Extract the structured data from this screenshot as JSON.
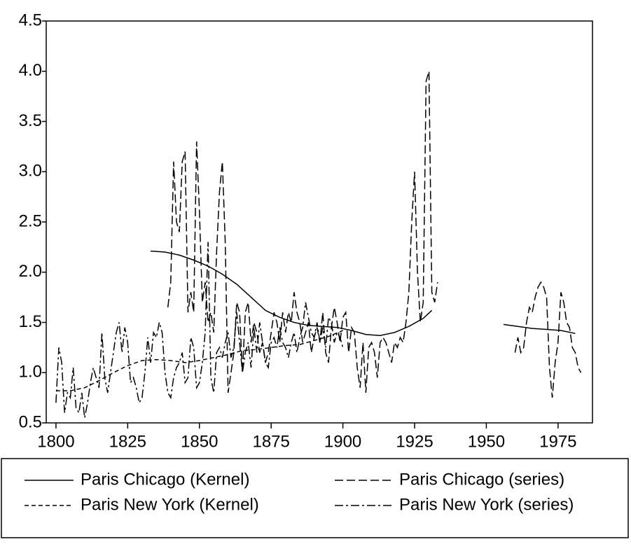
{
  "chart_data": {
    "type": "line",
    "xlim": [
      1796.6,
      1987
    ],
    "ylim": [
      0.5,
      4.5
    ],
    "xticks": [
      1800,
      1825,
      1850,
      1875,
      1900,
      1925,
      1950,
      1975
    ],
    "yticks": [
      0.5,
      {
        "value": 1,
        "label": "1.0"
      },
      1.5,
      {
        "value": 2,
        "label": "2.0"
      },
      2.5,
      {
        "value": 3,
        "label": "3.0"
      },
      3.5,
      {
        "value": 4,
        "label": "4.0"
      },
      4.5
    ],
    "grid": false,
    "legend": "bottom",
    "series": [
      {
        "name": "Paris Chicago (Kernel)",
        "color": "#000000",
        "dash": "solid",
        "x": [
          1833,
          1838,
          1843,
          1848,
          1853,
          1858,
          1863,
          1868,
          1873,
          1878,
          1883,
          1888,
          1893,
          1898,
          1903,
          1908,
          1913,
          1918,
          1923,
          1928,
          1931,
          1945,
          1956,
          1961,
          1966,
          1971,
          1976,
          1981
        ],
        "values": [
          2.21,
          2.2,
          2.17,
          2.12,
          2.06,
          1.98,
          1.88,
          1.75,
          1.62,
          1.55,
          1.5,
          1.47,
          1.46,
          1.45,
          1.42,
          1.38,
          1.37,
          1.4,
          1.46,
          1.54,
          1.62,
          null,
          1.48,
          1.46,
          1.44,
          1.43,
          1.42,
          1.39
        ]
      },
      {
        "name": "Paris Chicago (series)",
        "color": "#000000",
        "dash": "long-dash",
        "x": [
          1839,
          1840,
          1841,
          1842,
          1843,
          1844,
          1845,
          1846,
          1847,
          1848,
          1849,
          1850,
          1851,
          1852,
          1853,
          1854,
          1855,
          1856,
          1857,
          1858,
          1859,
          1860,
          1861,
          1862,
          1863,
          1864,
          1865,
          1866,
          1867,
          1868,
          1869,
          1870,
          1871,
          1872,
          1873,
          1874,
          1875,
          1876,
          1877,
          1878,
          1879,
          1880,
          1881,
          1882,
          1883,
          1884,
          1885,
          1886,
          1887,
          1888,
          1889,
          1890,
          1891,
          1892,
          1893,
          1894,
          1895,
          1896,
          1897,
          1898,
          1899,
          1900,
          1901,
          1902,
          1903,
          1904,
          1905,
          1906,
          1907,
          1908,
          1909,
          1910,
          1911,
          1912,
          1913,
          1914,
          1915,
          1916,
          1917,
          1918,
          1919,
          1920,
          1921,
          1922,
          1923,
          1924,
          1925,
          1926,
          1927,
          1928,
          1929,
          1930,
          1931,
          1932,
          1933,
          1945,
          1960,
          1961,
          1962,
          1963,
          1964,
          1965,
          1966,
          1967,
          1968,
          1969,
          1970,
          1971,
          1972,
          1973,
          1974,
          1975,
          1976,
          1977,
          1978,
          1979,
          1980,
          1981,
          1982,
          1983
        ],
        "values": [
          1.65,
          1.9,
          3.1,
          2.5,
          2.4,
          3.1,
          3.2,
          1.6,
          1.8,
          1.6,
          3.3,
          2.6,
          1.7,
          1.9,
          1.5,
          1.6,
          1.4,
          2.2,
          2.8,
          3.1,
          2.3,
          0.8,
          1.0,
          1.2,
          1.7,
          1.6,
          1.0,
          1.6,
          1.7,
          1.3,
          1.5,
          1.4,
          1.2,
          1.3,
          1.1,
          1.2,
          1.4,
          1.6,
          1.5,
          1.3,
          1.6,
          1.4,
          1.6,
          1.5,
          1.8,
          1.6,
          1.5,
          1.3,
          1.4,
          1.5,
          1.2,
          1.35,
          1.45,
          1.3,
          1.6,
          1.2,
          1.1,
          1.45,
          1.65,
          1.5,
          1.3,
          1.55,
          1.6,
          1.2,
          1.45,
          1.4,
          1.05,
          0.85,
          1.3,
          0.8,
          1.25,
          1.3,
          1.2,
          0.95,
          1.3,
          1.35,
          1.3,
          1.2,
          1.1,
          1.3,
          1.25,
          1.35,
          1.3,
          1.5,
          1.8,
          2.5,
          3.0,
          2.0,
          1.5,
          1.7,
          3.9,
          4.0,
          1.8,
          1.7,
          1.9,
          null,
          1.2,
          1.35,
          1.2,
          1.25,
          1.5,
          1.65,
          1.6,
          1.75,
          1.85,
          1.9,
          1.85,
          1.75,
          1.05,
          0.75,
          1.1,
          1.3,
          1.8,
          1.7,
          1.5,
          1.45,
          1.25,
          1.2,
          1.05,
          1.0
        ]
      },
      {
        "name": "Paris New York (Kernel)",
        "color": "#000000",
        "dash": "short-dash",
        "x": [
          1800,
          1805,
          1810,
          1815,
          1820,
          1825,
          1830,
          1835,
          1840,
          1845,
          1850,
          1855,
          1860,
          1865,
          1870,
          1875,
          1880,
          1885,
          1890,
          1895,
          1900
        ],
        "values": [
          0.82,
          0.82,
          0.85,
          0.92,
          1.0,
          1.07,
          1.12,
          1.13,
          1.12,
          1.1,
          1.12,
          1.15,
          1.18,
          1.22,
          1.23,
          1.25,
          1.27,
          1.28,
          1.32,
          1.36,
          1.42
        ]
      },
      {
        "name": "Paris New York (series)",
        "color": "#000000",
        "dash": "dash-dot",
        "x": [
          1800,
          1801,
          1802,
          1803,
          1804,
          1805,
          1806,
          1807,
          1808,
          1809,
          1810,
          1811,
          1812,
          1813,
          1814,
          1815,
          1816,
          1817,
          1818,
          1819,
          1820,
          1821,
          1822,
          1823,
          1824,
          1825,
          1826,
          1827,
          1828,
          1829,
          1830,
          1831,
          1832,
          1833,
          1834,
          1835,
          1836,
          1837,
          1838,
          1839,
          1840,
          1841,
          1842,
          1843,
          1844,
          1845,
          1846,
          1847,
          1848,
          1849,
          1850,
          1851,
          1852,
          1853,
          1854,
          1855,
          1856,
          1857,
          1858,
          1859,
          1860,
          1861,
          1862,
          1863,
          1864,
          1865,
          1866,
          1867,
          1868,
          1869,
          1870,
          1871,
          1872,
          1873,
          1874,
          1875,
          1876,
          1877,
          1878,
          1879,
          1880,
          1881,
          1882,
          1883,
          1884,
          1885,
          1886,
          1887,
          1888,
          1889,
          1890,
          1891,
          1892,
          1893,
          1894,
          1895,
          1896,
          1897,
          1898,
          1899,
          1900
        ],
        "values": [
          0.7,
          1.25,
          1.1,
          0.6,
          0.8,
          0.75,
          1.05,
          0.65,
          0.6,
          0.8,
          0.55,
          0.7,
          0.9,
          1.05,
          0.95,
          0.85,
          1.4,
          0.95,
          0.8,
          1.0,
          1.2,
          1.4,
          1.5,
          1.2,
          1.45,
          1.3,
          0.9,
          0.95,
          0.85,
          0.7,
          0.75,
          1.0,
          1.35,
          1.1,
          1.4,
          1.35,
          1.5,
          1.4,
          1.0,
          0.8,
          0.75,
          0.95,
          1.05,
          1.1,
          1.2,
          0.9,
          0.95,
          1.35,
          1.25,
          0.85,
          0.9,
          1.1,
          1.4,
          2.3,
          0.95,
          0.8,
          1.2,
          1.25,
          1.15,
          1.3,
          1.4,
          1.15,
          1.25,
          1.6,
          1.3,
          1.0,
          1.2,
          1.3,
          1.05,
          1.45,
          1.2,
          1.5,
          1.3,
          1.1,
          1.05,
          1.3,
          1.35,
          1.25,
          1.45,
          1.3,
          1.25,
          1.15,
          1.3,
          1.4,
          1.2,
          1.35,
          1.45,
          1.7,
          1.55,
          1.4,
          1.35,
          1.5,
          1.3,
          1.45,
          1.25,
          1.55,
          1.5,
          1.3,
          1.4,
          1.35,
          1.25
        ]
      }
    ]
  }
}
